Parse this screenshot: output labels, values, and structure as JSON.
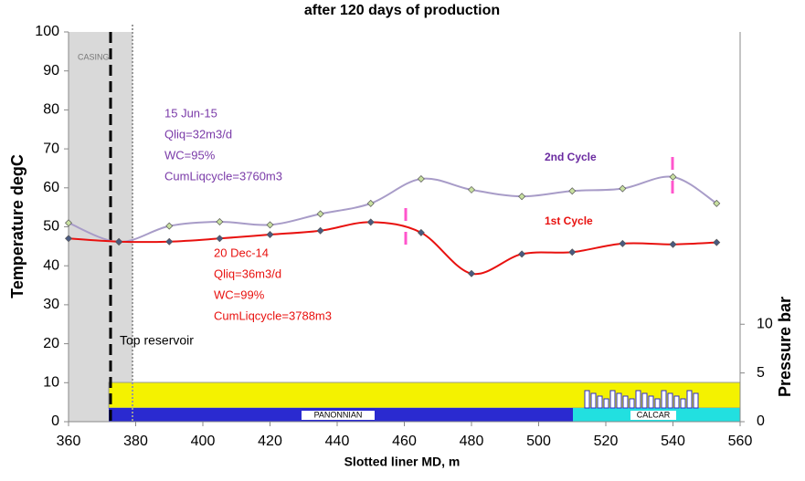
{
  "chart_data": {
    "type": "line",
    "title": "after 120 days of production",
    "x_label": "Slotted liner MD, m",
    "y_label": "Temperature degC",
    "y2_label": "Pressure bar",
    "x": [
      360,
      375,
      390,
      405,
      420,
      435,
      450,
      465,
      480,
      495,
      510,
      525,
      540,
      553
    ],
    "series": [
      {
        "name": "2nd Cycle",
        "color": "#a89cc8",
        "values": [
          51,
          46.1,
          50.2,
          51.3,
          50.5,
          53.3,
          56,
          62.3,
          59.5,
          57.8,
          59.2,
          59.8,
          62.8,
          56
        ]
      },
      {
        "name": "1st Cycle",
        "color": "#e8110f",
        "values": [
          47,
          46.2,
          46.2,
          47,
          48,
          49,
          51.2,
          48.5,
          38,
          43,
          43.5,
          45.7,
          45.5,
          46
        ]
      }
    ],
    "xlim": [
      360,
      560
    ],
    "xticks": [
      360,
      380,
      400,
      420,
      440,
      460,
      480,
      500,
      520,
      540,
      560
    ],
    "ylim": [
      0,
      100
    ],
    "yticks": [
      0,
      10,
      20,
      30,
      40,
      50,
      60,
      70,
      80,
      90,
      100
    ],
    "y2lim": [
      0,
      40
    ],
    "y2ticks": [
      0,
      5,
      10
    ],
    "annotations": {
      "casing": "CASING",
      "top_reservoir": "Top reservoir",
      "second_cycle_info": [
        "15 Jun-15",
        "Qliq=32m3/d",
        "WC=95%",
        "CumLiqcycle=3760m3"
      ],
      "first_cycle_info": [
        "20 Dec-14",
        "Qliq=36m3/d",
        "WC=99%",
        "CumLiqcycle=3788m3"
      ],
      "formation_1": "PANONNIAN",
      "formation_2": "CALCAR"
    }
  }
}
